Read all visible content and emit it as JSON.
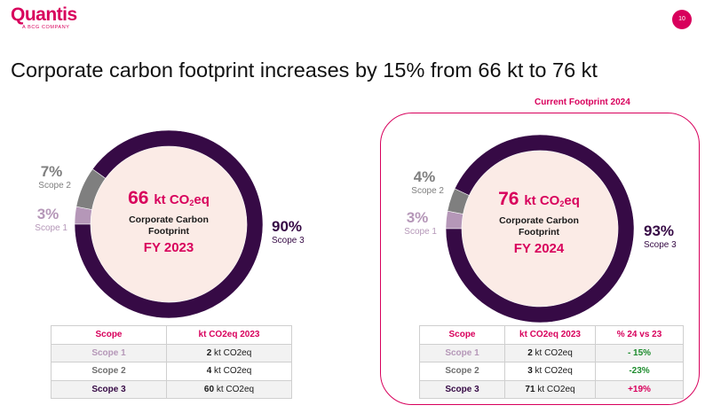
{
  "logo": {
    "main": "Quantis",
    "sub": "A BCG COMPANY"
  },
  "page_number": "10",
  "title": "Corporate carbon footprint increases by 15% from 66 kt to 76 kt",
  "current_label": "Current Footprint 2024",
  "colors": {
    "scope1": "#b597b8",
    "scope2": "#7f7f7f",
    "scope3": "#360a45",
    "center": "#fbebe6",
    "accent": "#d8005c"
  },
  "chart_data": [
    {
      "type": "pie",
      "title": "Corporate Carbon Footprint FY 2023",
      "total": "66",
      "unit": "kt CO",
      "unit_sub": "2",
      "unit_tail": "eq",
      "center_label": "Corporate Carbon Footprint",
      "year_label": "FY 2023",
      "slices": [
        {
          "name": "Scope 1",
          "percent": 3,
          "pct_label": "3%"
        },
        {
          "name": "Scope 2",
          "percent": 7,
          "pct_label": "7%"
        },
        {
          "name": "Scope 3",
          "percent": 90,
          "pct_label": "90%"
        }
      ]
    },
    {
      "type": "pie",
      "title": "Corporate Carbon Footprint FY 2024",
      "total": "76",
      "unit": "kt CO",
      "unit_sub": "2",
      "unit_tail": "eq",
      "center_label": "Corporate Carbon Footprint",
      "year_label": "FY 2024",
      "slices": [
        {
          "name": "Scope 1",
          "percent": 3,
          "pct_label": "3%"
        },
        {
          "name": "Scope 2",
          "percent": 4,
          "pct_label": "4%"
        },
        {
          "name": "Scope 3",
          "percent": 93,
          "pct_label": "93%"
        }
      ]
    },
    {
      "type": "table",
      "headers": [
        "Scope",
        "kt CO2eq 2023"
      ],
      "rows": [
        {
          "scope": "Scope 1",
          "value": "2",
          "unit": "kt CO2eq"
        },
        {
          "scope": "Scope 2",
          "value": "4",
          "unit": "kt CO2eq"
        },
        {
          "scope": "Scope 3",
          "value": "60",
          "unit": "kt CO2eq"
        }
      ]
    },
    {
      "type": "table",
      "headers": [
        "Scope",
        "kt CO2eq 2023",
        "% 24 vs 23"
      ],
      "rows": [
        {
          "scope": "Scope 1",
          "value": "2",
          "unit": "kt CO2eq",
          "change": "- 15%"
        },
        {
          "scope": "Scope 2",
          "value": "3",
          "unit": "kt CO2eq",
          "change": "-23%"
        },
        {
          "scope": "Scope 3",
          "value": "71",
          "unit": "kt CO2eq",
          "change": "+19%"
        }
      ]
    }
  ]
}
